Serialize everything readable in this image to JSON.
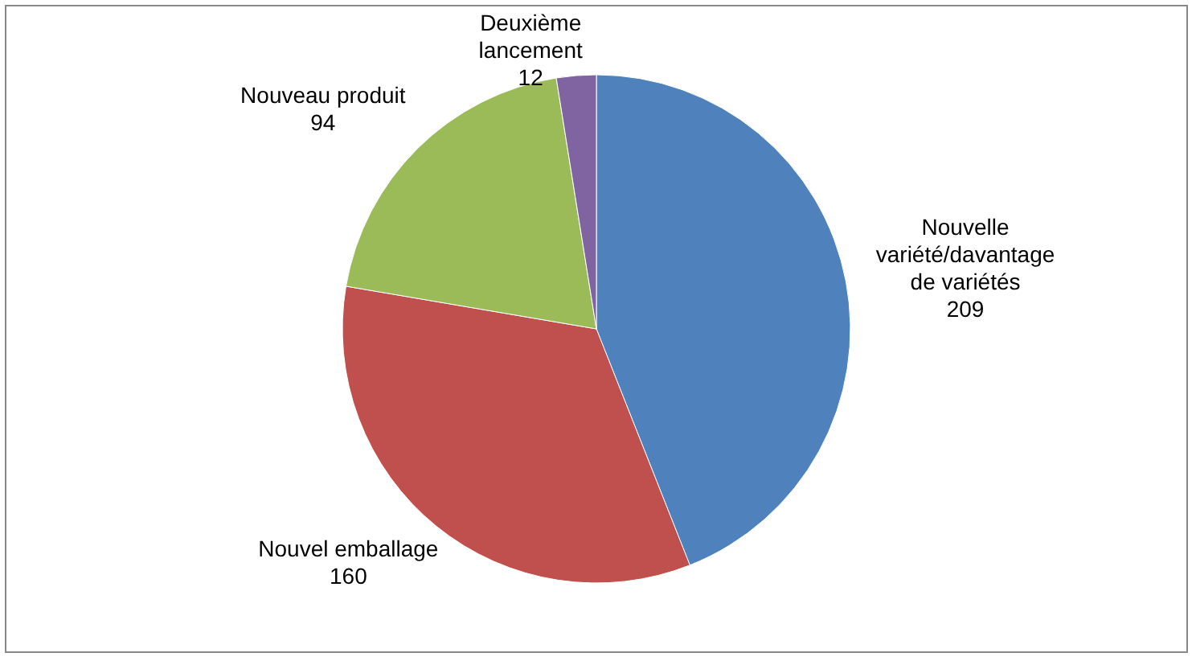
{
  "chart_data": {
    "type": "pie",
    "categories": [
      "Nouvelle variété/davantage de variétés",
      "Nouvel emballage",
      "Nouveau produit",
      "Deuxième lancement"
    ],
    "values": [
      209,
      160,
      94,
      12
    ],
    "colors": [
      "#4f81bd",
      "#c0504d",
      "#9bbb59",
      "#8064a2"
    ],
    "data_labels": true
  }
}
